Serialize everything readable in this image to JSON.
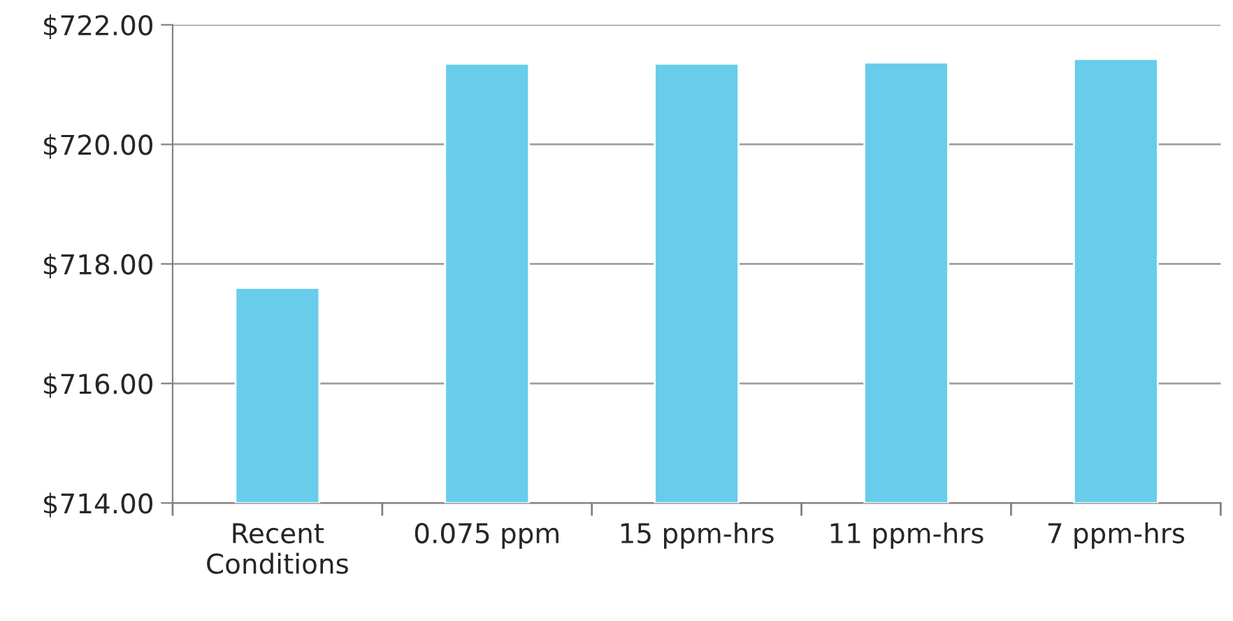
{
  "chart_data": {
    "type": "bar",
    "categories": [
      "Recent\nConditions",
      "0.075 ppm",
      "15 ppm-hrs",
      "11 ppm-hrs",
      "7 ppm-hrs"
    ],
    "values": [
      717.6,
      721.35,
      721.35,
      721.37,
      721.43
    ],
    "color": "#67cdeb",
    "ylim": [
      714,
      722
    ],
    "yticks": [
      {
        "value": 714,
        "label": "$714.00"
      },
      {
        "value": 716,
        "label": "$716.00"
      },
      {
        "value": 718,
        "label": "$718.00"
      },
      {
        "value": 720,
        "label": "$720.00"
      },
      {
        "value": 722,
        "label": "$722.00"
      }
    ],
    "grid": "y",
    "legend": false
  }
}
